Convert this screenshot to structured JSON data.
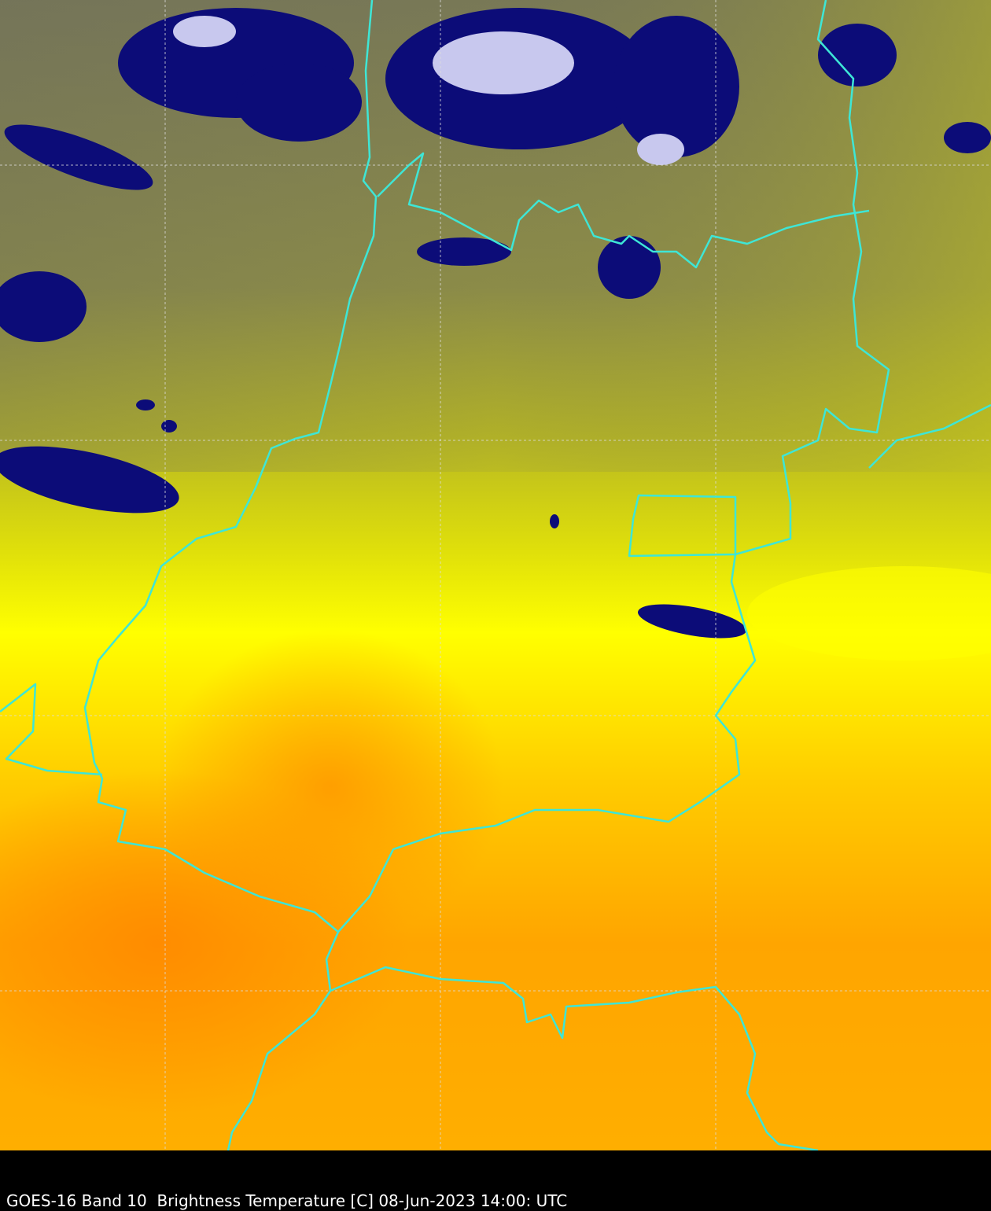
{
  "caption": "GOES-16 Band 10  Brightness Temperature [C] 08-Jun-2023 14:00: UTC"
}
